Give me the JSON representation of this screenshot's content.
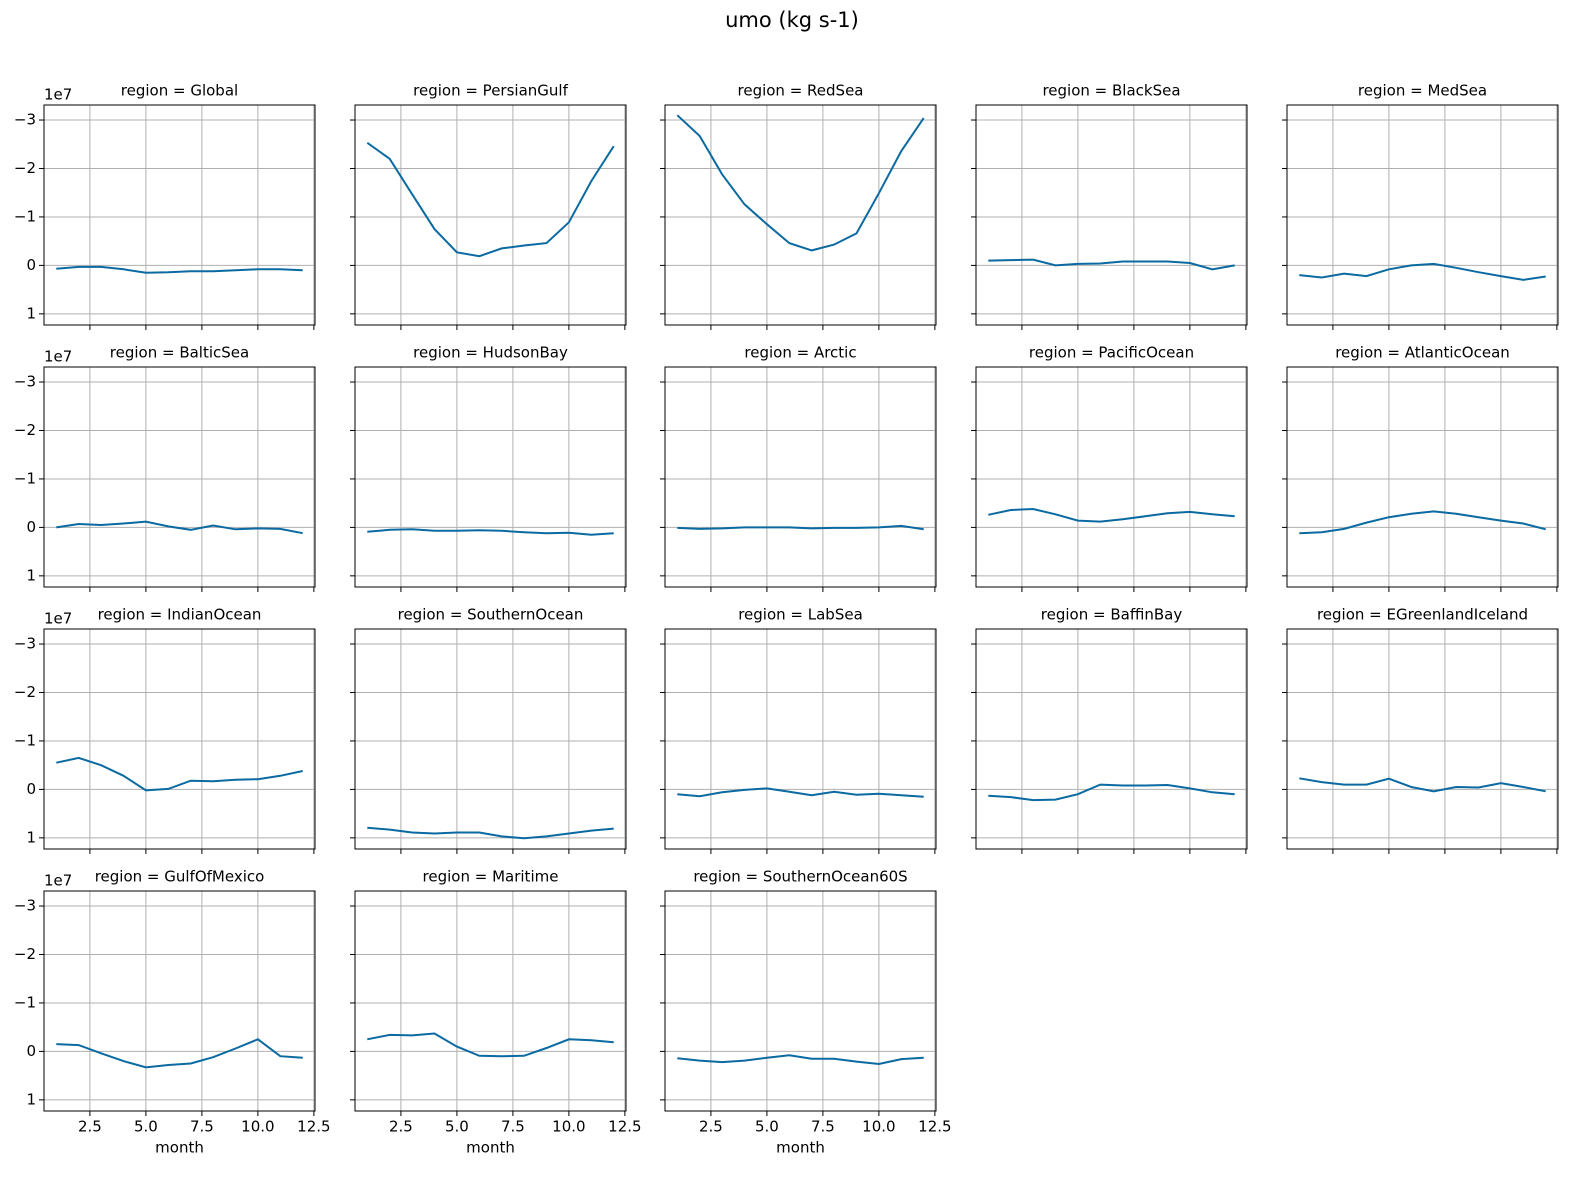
{
  "chart_data": {
    "type": "line",
    "title": "umo (kg s-1)",
    "xlabel": "month",
    "y_offset_label": "1e7",
    "color": "#0a6aa1",
    "grid": true,
    "x": [
      1,
      2,
      3,
      4,
      5,
      6,
      7,
      8,
      9,
      10,
      11,
      12
    ],
    "xlim": [
      0.45,
      12.55
    ],
    "xticks": [
      2.5,
      {
        "value": 5,
        "label": "5.0"
      },
      7.5,
      {
        "value": 10,
        "label": "10.0"
      },
      12.5
    ],
    "ylim": [
      1.23,
      -3.31
    ],
    "yticks": [
      {
        "value": -3,
        "label": "−3"
      },
      {
        "value": -2,
        "label": "−2"
      },
      {
        "value": -1,
        "label": "−1"
      },
      0,
      1
    ],
    "panels": [
      {
        "title": "region = Global",
        "values": [
          0.07,
          0.03,
          0.03,
          0.08,
          0.15,
          0.14,
          0.12,
          0.12,
          0.1,
          0.08,
          0.08,
          0.1
        ]
      },
      {
        "title": "region = PersianGulf",
        "values": [
          -2.53,
          -2.2,
          -1.47,
          -0.75,
          -0.27,
          -0.19,
          -0.35,
          -0.41,
          -0.46,
          -0.89,
          -1.74,
          -2.46
        ]
      },
      {
        "title": "region = RedSea",
        "values": [
          -3.1,
          -2.67,
          -1.88,
          -1.26,
          -0.85,
          -0.46,
          -0.31,
          -0.43,
          -0.66,
          -1.49,
          -2.36,
          -3.04
        ]
      },
      {
        "title": "region = BlackSea",
        "values": [
          -0.1,
          -0.11,
          -0.12,
          0,
          -0.03,
          -0.04,
          -0.08,
          -0.08,
          -0.08,
          -0.05,
          0.08,
          0
        ]
      },
      {
        "title": "region = MedSea",
        "values": [
          0.2,
          0.25,
          0.17,
          0.22,
          0.08,
          0,
          -0.03,
          0.05,
          0.14,
          0.22,
          0.3,
          0.23
        ]
      },
      {
        "title": "region = BalticSea",
        "values": [
          0,
          -0.07,
          -0.05,
          -0.08,
          -0.12,
          -0.02,
          0.05,
          -0.04,
          0.04,
          0.02,
          0.03,
          0.12
        ]
      },
      {
        "title": "region = HudsonBay",
        "values": [
          0.09,
          0.05,
          0.04,
          0.07,
          0.07,
          0.06,
          0.07,
          0.1,
          0.12,
          0.11,
          0.15,
          0.12
        ]
      },
      {
        "title": "region = Arctic",
        "values": [
          0.01,
          0.03,
          0.02,
          0,
          0,
          0,
          0.02,
          0.01,
          0.01,
          0,
          -0.03,
          0.04
        ]
      },
      {
        "title": "region = PacificOcean",
        "values": [
          -0.26,
          -0.36,
          -0.38,
          -0.27,
          -0.14,
          -0.12,
          -0.17,
          -0.23,
          -0.29,
          -0.32,
          -0.27,
          -0.23
        ]
      },
      {
        "title": "region = AtlanticOcean",
        "values": [
          0.12,
          0.1,
          0.03,
          -0.1,
          -0.21,
          -0.28,
          -0.33,
          -0.28,
          -0.21,
          -0.14,
          -0.08,
          0.04
        ]
      },
      {
        "title": "region = IndianOcean",
        "values": [
          -0.55,
          -0.65,
          -0.5,
          -0.28,
          0.02,
          -0.01,
          -0.18,
          -0.17,
          -0.2,
          -0.21,
          -0.28,
          -0.38
        ]
      },
      {
        "title": "region = SouthernOcean",
        "values": [
          0.79,
          0.83,
          0.89,
          0.91,
          0.89,
          0.89,
          0.97,
          1.01,
          0.97,
          0.91,
          0.85,
          0.81
        ]
      },
      {
        "title": "region = LabSea",
        "values": [
          0.1,
          0.14,
          0.06,
          0.01,
          -0.02,
          0.05,
          0.12,
          0.05,
          0.11,
          0.09,
          0.12,
          0.15
        ]
      },
      {
        "title": "region = BaffinBay",
        "values": [
          0.13,
          0.16,
          0.22,
          0.21,
          0.1,
          -0.1,
          -0.08,
          -0.08,
          -0.09,
          -0.02,
          0.06,
          0.1
        ]
      },
      {
        "title": "region = EGreenlandIceland",
        "values": [
          -0.23,
          -0.15,
          -0.1,
          -0.1,
          -0.22,
          -0.05,
          0.04,
          -0.05,
          -0.04,
          -0.13,
          -0.05,
          0.04
        ]
      },
      {
        "title": "region = GulfOfMexico",
        "values": [
          -0.15,
          -0.13,
          0.04,
          0.2,
          0.33,
          0.28,
          0.25,
          0.12,
          -0.06,
          -0.25,
          0.1,
          0.13
        ]
      },
      {
        "title": "region = Maritime",
        "values": [
          -0.25,
          -0.34,
          -0.33,
          -0.37,
          -0.1,
          0.09,
          0.1,
          0.09,
          -0.07,
          -0.25,
          -0.23,
          -0.19
        ]
      },
      {
        "title": "region = SouthernOcean60S",
        "values": [
          0.14,
          0.19,
          0.22,
          0.19,
          0.13,
          0.08,
          0.15,
          0.15,
          0.21,
          0.26,
          0.16,
          0.13
        ]
      }
    ]
  }
}
